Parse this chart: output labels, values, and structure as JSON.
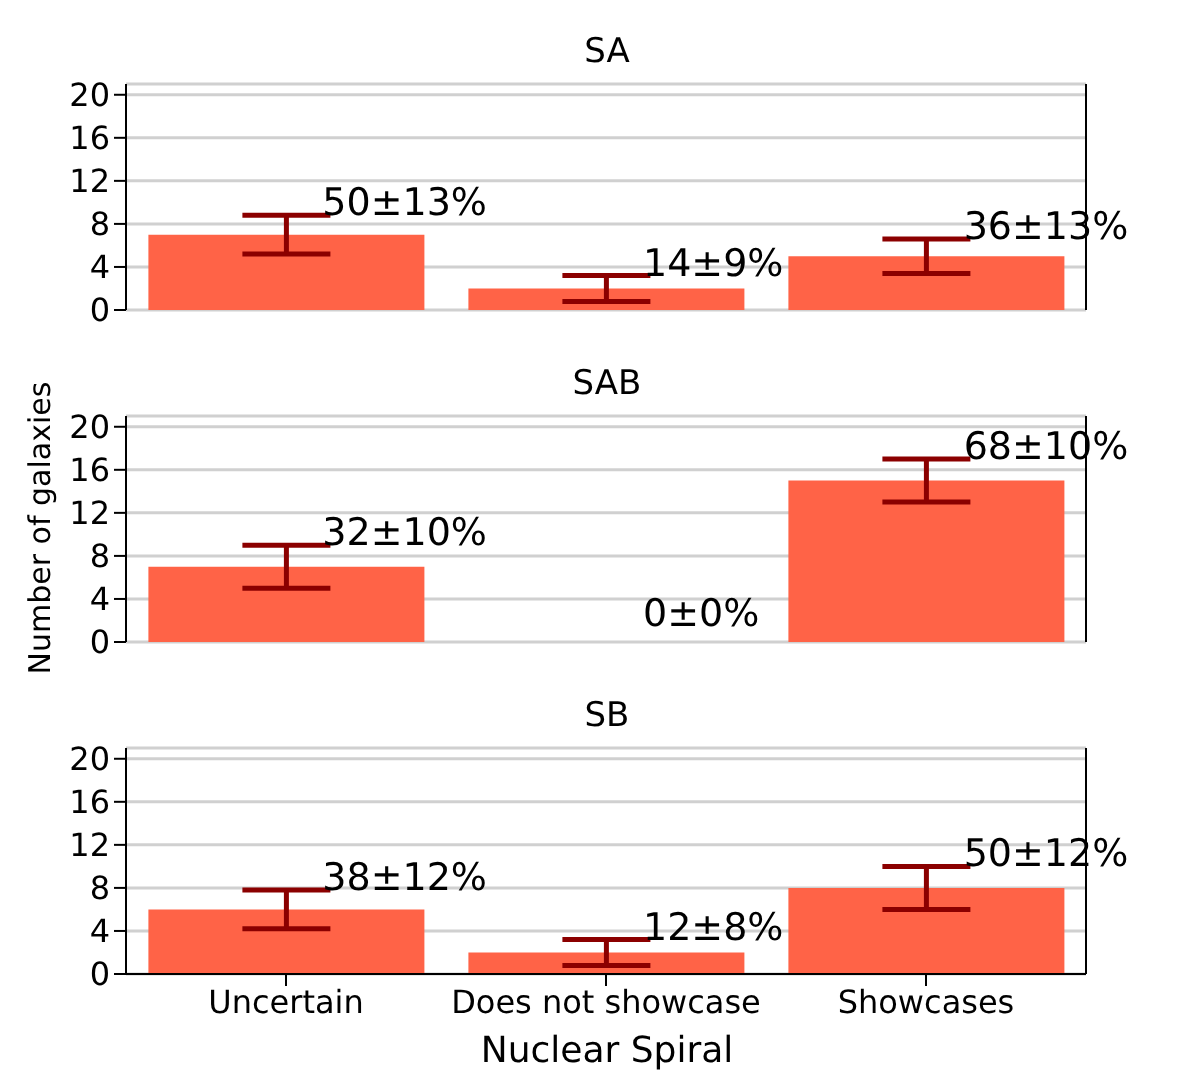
{
  "chart_data": [
    {
      "type": "bar",
      "title": "SA",
      "categories": [
        "Uncertain",
        "Does not showcase",
        "Showcases"
      ],
      "values": [
        7,
        2,
        5
      ],
      "errors": [
        1.8,
        1.2,
        1.6
      ],
      "color": "#ff6347",
      "ylim": [
        0,
        21
      ],
      "yticks": [
        0,
        4,
        8,
        12,
        16,
        20
      ],
      "grid": "y",
      "tick_labels": "y",
      "annotations": [
        {
          "text": "50±13%",
          "x": "Uncertain",
          "y": 8.8
        },
        {
          "text": "14±9%",
          "x": "Does not showcase",
          "y": 3.2
        },
        {
          "text": "36±13%",
          "x": "Showcases",
          "y": 6.6
        }
      ]
    },
    {
      "type": "bar",
      "title": "SAB",
      "ylabel": "Number of galaxies",
      "categories": [
        "Uncertain",
        "Does not showcase",
        "Showcases"
      ],
      "values": [
        7,
        0,
        15
      ],
      "errors": [
        2,
        0,
        2
      ],
      "color": "#ff6347",
      "ylim": [
        0,
        21
      ],
      "yticks": [
        0,
        4,
        8,
        12,
        16,
        20
      ],
      "grid": "y",
      "tick_labels": "y",
      "annotations": [
        {
          "text": "32±10%",
          "x": "Uncertain",
          "y": 9
        },
        {
          "text": "0±0%",
          "x": "Does not showcase",
          "y": 0
        },
        {
          "text": "68±10%",
          "x": "Showcases",
          "y": 17
        }
      ]
    },
    {
      "type": "bar",
      "title": "SB",
      "xlabel": "Nuclear Spiral",
      "categories": [
        "Uncertain",
        "Does not showcase",
        "Showcases"
      ],
      "values": [
        6,
        2,
        8
      ],
      "errors": [
        1.8,
        1.2,
        2
      ],
      "color": "#ff6347",
      "ylim": [
        0,
        21
      ],
      "yticks": [
        0,
        4,
        8,
        12,
        16,
        20
      ],
      "grid": "y",
      "annotations": [
        {
          "text": "38±12%",
          "x": "Uncertain",
          "y": 7.8
        },
        {
          "text": "12±8%",
          "x": "Does not showcase",
          "y": 3.2
        },
        {
          "text": "50±12%",
          "x": "Showcases",
          "y": 10
        }
      ]
    }
  ]
}
